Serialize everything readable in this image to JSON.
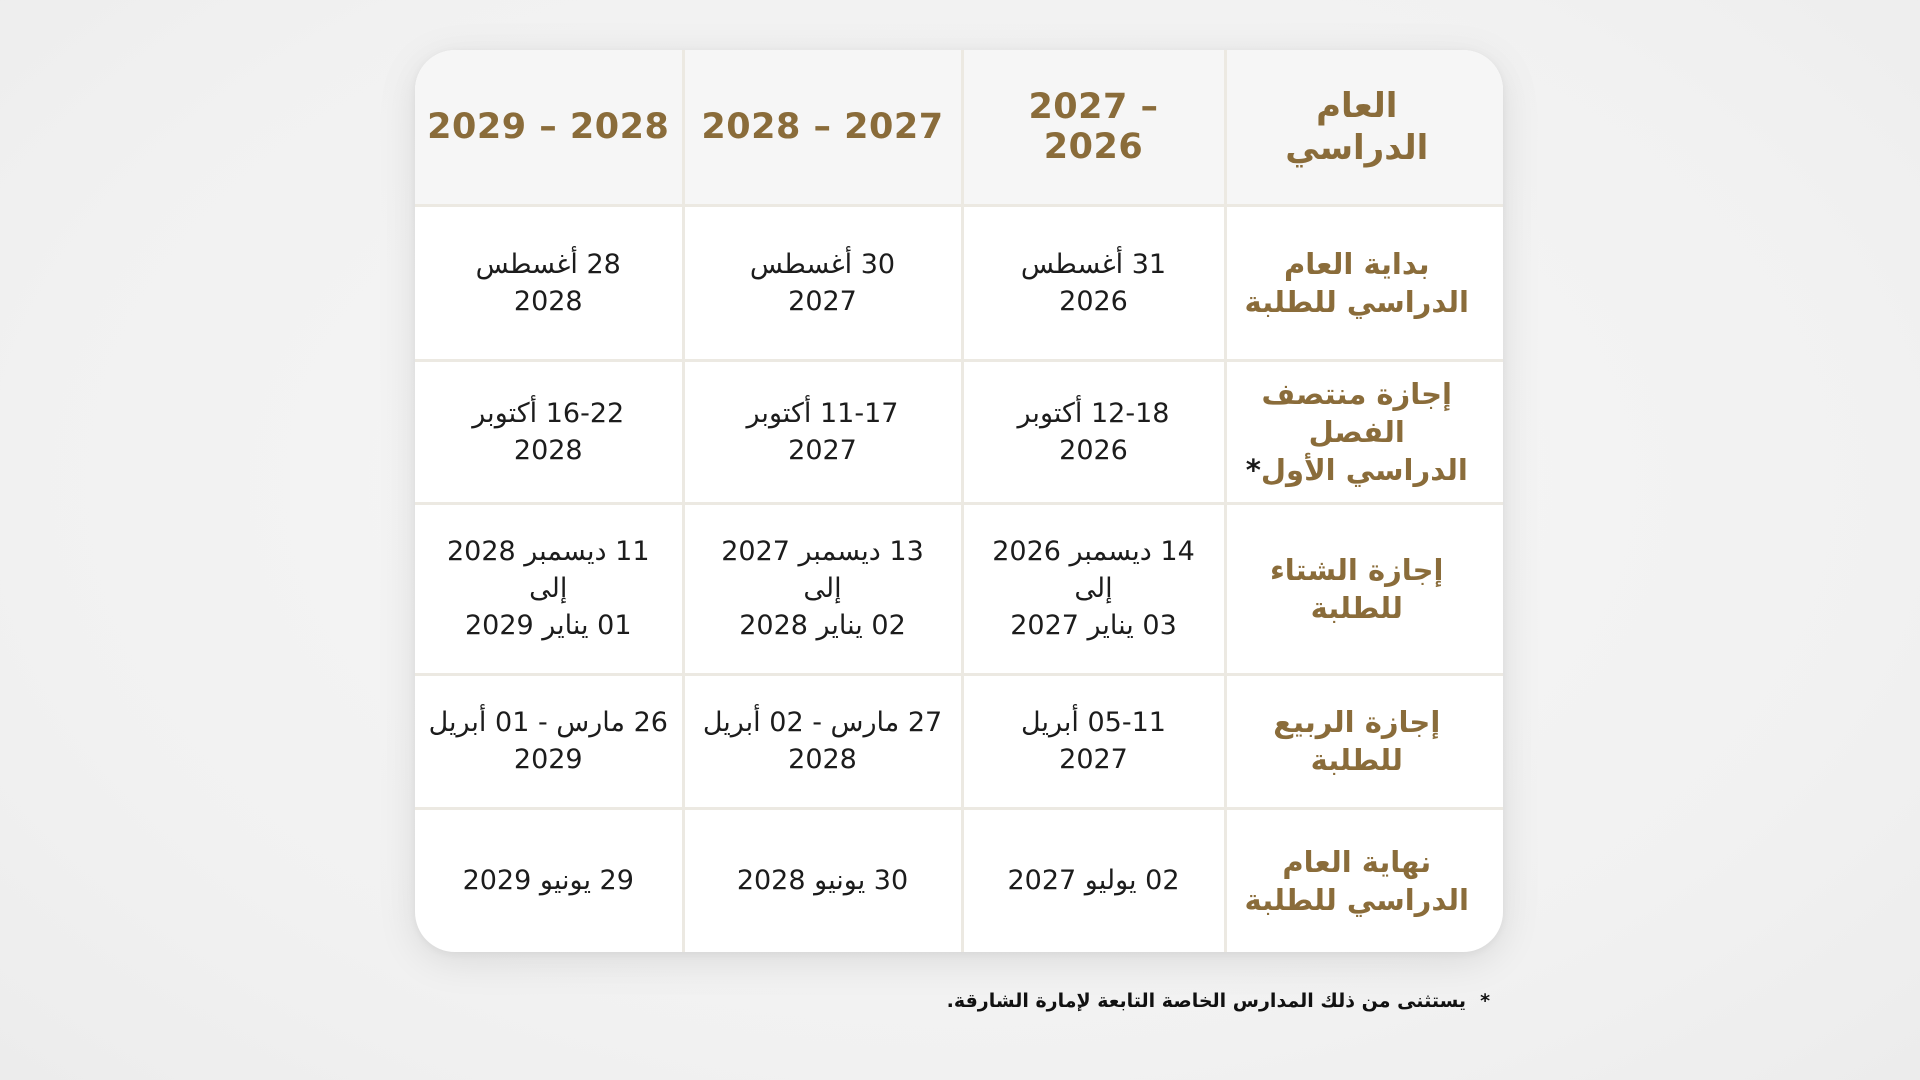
{
  "table": {
    "header": {
      "label_line1": "العام",
      "label_line2": "الدراسي",
      "years": [
        "2027 – 2026",
        "2028 – 2027",
        "2029 – 2028"
      ]
    },
    "rows": [
      {
        "label_line1": "بداية العام",
        "label_line2": "الدراسي للطلبة",
        "asterisk": "",
        "values": [
          {
            "line1": "31 أغسطس",
            "line2": "2026",
            "line3": ""
          },
          {
            "line1": "30 أغسطس",
            "line2": "2027",
            "line3": ""
          },
          {
            "line1": "28 أغسطس",
            "line2": "2028",
            "line3": ""
          }
        ]
      },
      {
        "label_line1": "إجازة منتصف الفصل",
        "label_line2": "الدراسي الأول",
        "asterisk": "*",
        "values": [
          {
            "line1": "12-18 أكتوبر",
            "line2": "2026",
            "line3": ""
          },
          {
            "line1": "11-17 أكتوبر",
            "line2": "2027",
            "line3": ""
          },
          {
            "line1": "16-22 أكتوبر",
            "line2": "2028",
            "line3": ""
          }
        ]
      },
      {
        "label_line1": "إجازة الشتاء",
        "label_line2": "للطلبة",
        "asterisk": "",
        "values": [
          {
            "line1": "14 ديسمبر 2026",
            "line2": "إلى",
            "line3": "03 يناير 2027"
          },
          {
            "line1": "13 ديسمبر 2027",
            "line2": "إلى",
            "line3": "02 يناير 2028"
          },
          {
            "line1": "11 ديسمبر 2028",
            "line2": "إلى",
            "line3": "01 يناير 2029"
          }
        ]
      },
      {
        "label_line1": "إجازة الربيع",
        "label_line2": "للطلبة",
        "asterisk": "",
        "values": [
          {
            "line1": "05-11 أبريل",
            "line2": "2027",
            "line3": ""
          },
          {
            "line1": "27 مارس - 02 أبريل",
            "line2": "2028",
            "line3": ""
          },
          {
            "line1": "26 مارس - 01 أبريل",
            "line2": "2029",
            "line3": ""
          }
        ]
      },
      {
        "label_line1": "نهاية العام",
        "label_line2": "الدراسي للطلبة",
        "asterisk": "",
        "values": [
          {
            "line1": "02 يوليو 2027",
            "line2": "",
            "line3": ""
          },
          {
            "line1": "30 يونيو 2028",
            "line2": "",
            "line3": ""
          },
          {
            "line1": "29 يونيو 2029",
            "line2": "",
            "line3": ""
          }
        ]
      }
    ]
  },
  "footnote": {
    "star": "*",
    "text": "يستثنى من ذلك المدارس الخاصة التابعة لإمارة الشارقة."
  },
  "colors": {
    "gold": "#8a6c3a",
    "header_bg": "#f6f6f6",
    "border": "#ece9e2",
    "text": "#1c1c1c",
    "page_bg": "#f4f4f4"
  }
}
